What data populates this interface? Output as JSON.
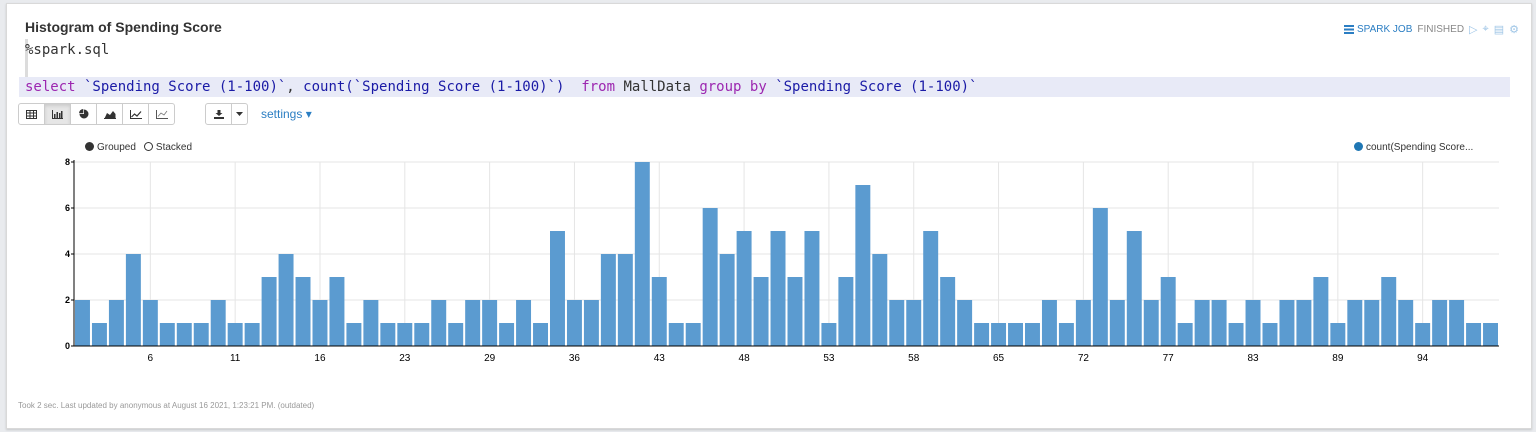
{
  "paragraph": {
    "title": "Histogram of Spending Score",
    "status": {
      "job_label": "SPARK JOB",
      "state": "FINISHED"
    },
    "interpreter": "%spark.sql",
    "query": {
      "kw_select": "select",
      "col1": " `Spending Score (1-100)`",
      "comma": ", ",
      "fn": "count(`Spending Score (1-100)`)",
      "kw_from": "  from",
      "table": " MallData ",
      "kw_group": "group by",
      "col2": " `Spending Score (1-100)`"
    },
    "toolbar": {
      "buttons": [
        "table-icon",
        "bar-chart-icon",
        "pie-chart-icon",
        "area-chart-icon",
        "line-chart-icon",
        "scatter-chart-icon"
      ],
      "active": "bar-chart-icon",
      "settings_label": "settings ▾"
    },
    "footer": "Took 2 sec. Last updated by anonymous at August 16 2021, 1:23:21 PM. (outdated)"
  },
  "legend": {
    "grouped": "Grouped",
    "stacked": "Stacked",
    "series": "count(Spending Score..."
  },
  "colors": {
    "bar": "#5b9bd0",
    "accent": "#2b7ec3"
  },
  "chart_data": {
    "type": "bar",
    "x_tick_labels": [
      "6",
      "11",
      "16",
      "23",
      "29",
      "36",
      "43",
      "48",
      "53",
      "58",
      "65",
      "72",
      "77",
      "83",
      "89",
      "94"
    ],
    "x_tick_positions": [
      4,
      9,
      14,
      19,
      24,
      29,
      34,
      39,
      44,
      49,
      54,
      59,
      64,
      69,
      74,
      79
    ],
    "ylim": [
      0,
      8
    ],
    "y_ticks": [
      0,
      2,
      4,
      6,
      8
    ],
    "series": [
      {
        "name": "count(Spending Score...",
        "values": [
          2,
          1,
          2,
          4,
          2,
          1,
          1,
          1,
          2,
          1,
          1,
          3,
          4,
          3,
          2,
          3,
          1,
          2,
          1,
          1,
          1,
          2,
          1,
          2,
          2,
          1,
          2,
          1,
          5,
          2,
          2,
          4,
          4,
          8,
          3,
          1,
          1,
          6,
          4,
          5,
          3,
          5,
          3,
          5,
          1,
          3,
          7,
          4,
          2,
          2,
          5,
          3,
          2,
          1,
          1,
          1,
          1,
          2,
          1,
          2,
          6,
          2,
          5,
          2,
          3,
          1,
          2,
          2,
          1,
          2,
          1,
          2,
          2,
          3,
          1,
          2,
          2,
          3,
          2,
          1,
          2,
          2,
          1,
          1
        ]
      }
    ]
  }
}
